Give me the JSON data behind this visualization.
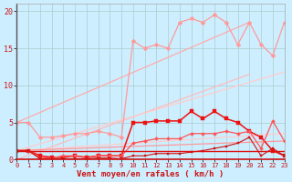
{
  "bg_color": "#cceeff",
  "grid_color": "#aacccc",
  "xlabel": "Vent moyen/en rafales ( km/h )",
  "xlim": [
    0,
    23
  ],
  "ylim": [
    0,
    21
  ],
  "yticks": [
    0,
    5,
    10,
    15,
    20
  ],
  "xticks": [
    0,
    1,
    2,
    3,
    4,
    5,
    6,
    7,
    8,
    9,
    10,
    11,
    12,
    13,
    14,
    15,
    16,
    17,
    18,
    19,
    20,
    21,
    22,
    23
  ],
  "lines": [
    {
      "label": "straight_upper1",
      "color": "#ffaaaa",
      "lw": 0.9,
      "marker": null,
      "x": [
        0,
        20
      ],
      "y": [
        5.0,
        18.5
      ]
    },
    {
      "label": "straight_upper2",
      "color": "#ffbbbb",
      "lw": 0.9,
      "marker": null,
      "x": [
        0,
        20
      ],
      "y": [
        0.0,
        11.5
      ]
    },
    {
      "label": "straight_mid1",
      "color": "#ffcccc",
      "lw": 0.9,
      "marker": null,
      "x": [
        0,
        23
      ],
      "y": [
        1.2,
        11.8
      ]
    },
    {
      "label": "straight_mid2",
      "color": "#ffcccc",
      "lw": 0.9,
      "marker": null,
      "x": [
        0,
        23
      ],
      "y": [
        1.2,
        3.5
      ]
    },
    {
      "label": "straight_low",
      "color": "#ff9999",
      "lw": 0.9,
      "marker": null,
      "x": [
        0,
        23
      ],
      "y": [
        1.2,
        2.5
      ]
    },
    {
      "label": "wavy_pink_markers",
      "color": "#ff9999",
      "lw": 0.9,
      "marker": "D",
      "markersize": 2.5,
      "x": [
        0,
        1,
        2,
        3,
        4,
        5,
        6,
        7,
        8,
        9,
        10,
        11,
        12,
        13,
        14,
        15,
        16,
        17,
        18,
        19,
        20,
        21,
        22,
        23
      ],
      "y": [
        5.0,
        5.0,
        3.0,
        3.0,
        3.2,
        3.5,
        3.5,
        3.8,
        3.5,
        3.0,
        16.0,
        15.0,
        15.5,
        15.0,
        18.5,
        19.0,
        18.5,
        19.5,
        18.5,
        15.5,
        18.5,
        15.5,
        14.0,
        18.5
      ]
    },
    {
      "label": "dark_red_markers",
      "color": "#ee1111",
      "lw": 1.1,
      "marker": "s",
      "markersize": 2.5,
      "x": [
        0,
        1,
        2,
        3,
        4,
        5,
        6,
        7,
        8,
        9,
        10,
        11,
        12,
        13,
        14,
        15,
        16,
        17,
        18,
        19,
        20,
        21,
        22,
        23
      ],
      "y": [
        1.2,
        1.2,
        0.5,
        0.3,
        0.3,
        0.5,
        0.3,
        0.5,
        0.5,
        0.5,
        5.0,
        5.0,
        5.2,
        5.2,
        5.2,
        6.5,
        5.5,
        6.5,
        5.5,
        5.0,
        3.8,
        3.0,
        1.2,
        0.5
      ]
    },
    {
      "label": "mid_red_line",
      "color": "#ff5555",
      "lw": 0.9,
      "marker": "D",
      "markersize": 2.0,
      "x": [
        0,
        1,
        2,
        3,
        4,
        5,
        6,
        7,
        8,
        9,
        10,
        11,
        12,
        13,
        14,
        15,
        16,
        17,
        18,
        19,
        20,
        21,
        22,
        23
      ],
      "y": [
        1.2,
        1.2,
        0.2,
        0.2,
        0.5,
        0.5,
        0.2,
        0.5,
        0.5,
        0.5,
        2.2,
        2.5,
        2.8,
        2.8,
        2.8,
        3.5,
        3.5,
        3.5,
        3.8,
        3.5,
        3.8,
        1.5,
        5.2,
        2.5
      ]
    },
    {
      "label": "bottom_dark_markers",
      "color": "#cc1111",
      "lw": 0.8,
      "marker": "s",
      "markersize": 1.8,
      "x": [
        0,
        1,
        2,
        3,
        4,
        5,
        6,
        7,
        8,
        9,
        10,
        11,
        12,
        13,
        14,
        15,
        16,
        17,
        18,
        19,
        20,
        21,
        22,
        23
      ],
      "y": [
        1.2,
        1.2,
        0.1,
        0.1,
        0.1,
        0.1,
        0.1,
        0.2,
        0.2,
        0.1,
        0.5,
        0.5,
        0.8,
        0.8,
        0.8,
        1.0,
        1.2,
        1.5,
        1.8,
        2.2,
        3.0,
        0.5,
        1.5,
        0.5
      ]
    },
    {
      "label": "horizontal_red",
      "color": "#dd1111",
      "lw": 1.0,
      "marker": null,
      "x": [
        0,
        23
      ],
      "y": [
        1.2,
        1.2
      ]
    }
  ]
}
